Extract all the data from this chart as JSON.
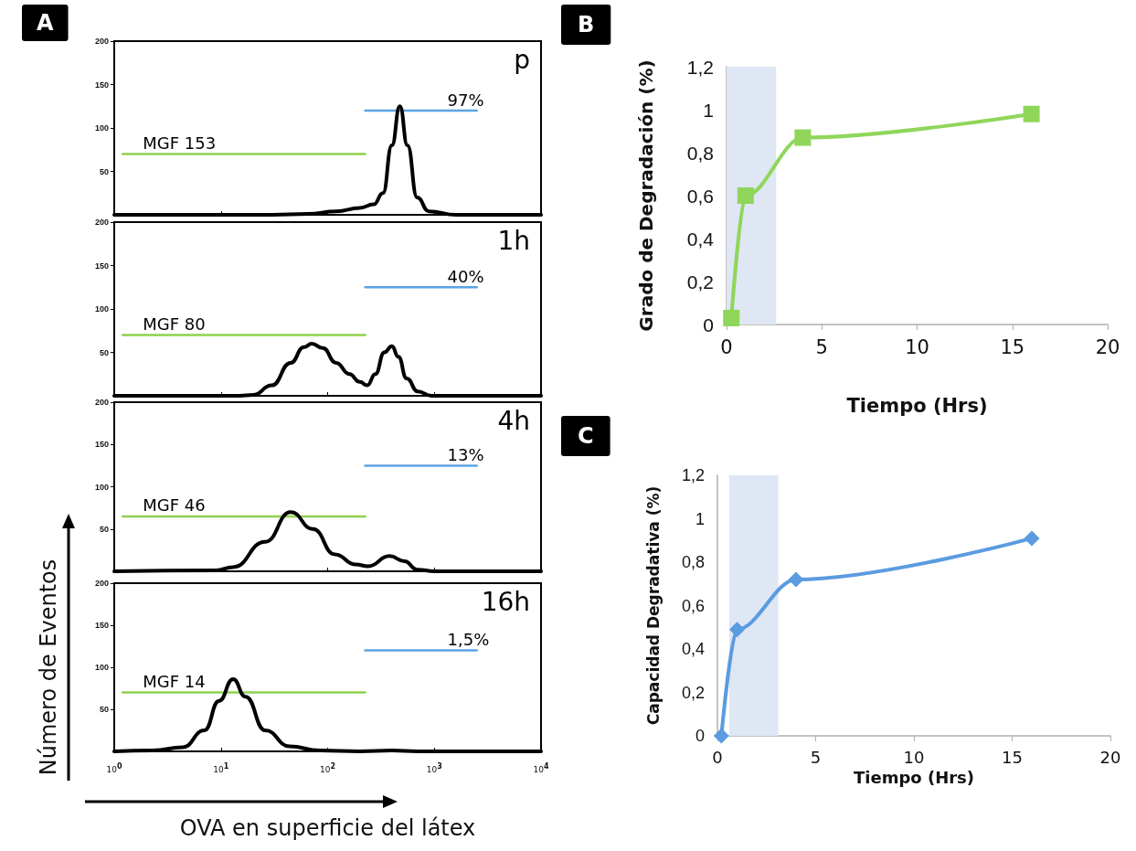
{
  "chart_data": [
    {
      "type": "line",
      "title": "A",
      "log": "x",
      "xlim": [
        1,
        10000
      ],
      "xticks": [
        {
          "value": 1,
          "label": null
        },
        {
          "value": 10,
          "label": null
        },
        {
          "value": 100,
          "label": null
        },
        {
          "value": 1000,
          "label": null
        },
        {
          "value": 10000,
          "label": null
        }
      ],
      "ylim": [
        0,
        200
      ],
      "yticks": [
        50,
        100,
        150,
        200
      ],
      "tick_labels": "y",
      "marker": "none",
      "annotations": [
        "p"
      ],
      "series": [
        {
          "color": "#000000",
          "x": [
            1,
            30,
            65,
            120,
            200,
            270,
            330,
            400,
            475,
            560,
            690,
            890,
            1600,
            10000
          ],
          "values": [
            0,
            0,
            1,
            4,
            8,
            12,
            25,
            80,
            125,
            80,
            20,
            4,
            0,
            0
          ]
        },
        {
          "name": "MGF 153",
          "color": "#8fd14f",
          "x": [
            1.2,
            225
          ],
          "values": [
            70,
            70
          ]
        },
        {
          "name": "97%",
          "color": "#5ba3e6",
          "x": [
            225,
            2500
          ],
          "values": [
            120,
            120
          ]
        }
      ]
    },
    {
      "type": "line",
      "log": "x",
      "xlim": [
        1,
        10000
      ],
      "xticks": [
        {
          "value": 1,
          "label": null
        },
        {
          "value": 10,
          "label": null
        },
        {
          "value": 100,
          "label": null
        },
        {
          "value": 1000,
          "label": null
        },
        {
          "value": 10000,
          "label": null
        }
      ],
      "ylim": [
        0,
        200
      ],
      "yticks": [
        50,
        100,
        150,
        200
      ],
      "tick_labels": "y",
      "marker": "none",
      "annotations": [
        "1h"
      ],
      "series": [
        {
          "color": "#000000",
          "x": [
            1,
            15,
            20,
            30,
            45,
            60,
            71,
            90,
            120,
            160,
            200,
            235,
            280,
            340,
            400,
            460,
            550,
            700,
            940,
            10000
          ],
          "values": [
            0,
            0,
            1,
            12,
            38,
            56,
            60,
            55,
            38,
            25,
            16,
            12,
            25,
            50,
            57,
            45,
            20,
            5,
            0,
            0
          ]
        },
        {
          "name": "MGF 80",
          "color": "#8fd14f",
          "x": [
            1.2,
            225
          ],
          "values": [
            70,
            70
          ]
        },
        {
          "name": "40%",
          "color": "#5ba3e6",
          "x": [
            225,
            2500
          ],
          "values": [
            125,
            125
          ]
        }
      ]
    },
    {
      "type": "line",
      "log": "x",
      "xlim": [
        1,
        10000
      ],
      "xticks": [
        {
          "value": 1,
          "label": null
        },
        {
          "value": 10,
          "label": null
        },
        {
          "value": 100,
          "label": null
        },
        {
          "value": 1000,
          "label": null
        },
        {
          "value": 10000,
          "label": null
        }
      ],
      "ylim": [
        0,
        200
      ],
      "yticks": [
        50,
        100,
        150,
        200
      ],
      "tick_labels": "y",
      "marker": "none",
      "annotations": [
        "4h"
      ],
      "series": [
        {
          "color": "#000000",
          "x": [
            1,
            9,
            13,
            26,
            45,
            73,
            117,
            183,
            240,
            380,
            525,
            690,
            1000,
            10000
          ],
          "values": [
            0,
            1,
            5,
            35,
            70,
            50,
            20,
            8,
            6,
            18,
            12,
            2,
            0,
            0
          ]
        },
        {
          "name": "MGF 46",
          "color": "#8fd14f",
          "x": [
            1.2,
            225
          ],
          "values": [
            65,
            65
          ]
        },
        {
          "name": "13%",
          "color": "#5ba3e6",
          "x": [
            225,
            2500
          ],
          "values": [
            125,
            125
          ]
        }
      ]
    },
    {
      "type": "line",
      "log": "x",
      "xlim": [
        1,
        10000
      ],
      "xticks": [
        {
          "value": 1,
          "label": "10$^{0}$"
        },
        {
          "value": 10,
          "label": "10$^{1}$"
        },
        {
          "value": 100,
          "label": "10$^{2}$"
        },
        {
          "value": 1000,
          "label": "10$^{3}$"
        },
        {
          "value": 10000,
          "label": "10$^{4}$"
        }
      ],
      "ylim": [
        0,
        200
      ],
      "yticks": [
        50,
        100,
        150,
        200
      ],
      "xlabel": "OVA en superficie del látex",
      "ylabel": "Número de Eventos",
      "marker": "none",
      "annotations": [
        "16h"
      ],
      "series": [
        {
          "color": "#000000",
          "x": [
            1,
            2.3,
            4.4,
            7,
            9.6,
            13,
            17,
            26,
            44,
            84,
            200,
            400,
            700,
            10000
          ],
          "values": [
            0,
            1,
            5,
            25,
            60,
            86,
            65,
            25,
            6,
            1,
            0,
            1,
            0,
            0
          ]
        },
        {
          "name": "MGF 14",
          "color": "#8fd14f",
          "x": [
            1.2,
            225
          ],
          "values": [
            70,
            70
          ]
        },
        {
          "name": "1,5%",
          "color": "#5ba3e6",
          "x": [
            225,
            2500
          ],
          "values": [
            120,
            120
          ]
        }
      ]
    },
    {
      "type": "line",
      "title": "B",
      "xlabel": "Tiempo (Hrs)",
      "ylabel": "Grado de Degradación (%)",
      "xlim": [
        0,
        20
      ],
      "xticks": [
        0,
        5,
        10,
        15,
        20
      ],
      "ylim": [
        0,
        1.2
      ],
      "yticks": [
        0,
        {
          "value": 0.2,
          "label": "0,2"
        },
        {
          "value": 0.4,
          "label": "0,4"
        },
        {
          "value": 0.6,
          "label": "0,6"
        },
        {
          "value": 0.8,
          "label": "0,8"
        },
        1,
        {
          "value": 1.2,
          "label": "1,2"
        }
      ],
      "marker": "square",
      "bands": [
        {
          "axis": "x",
          "from": 0,
          "to": 2.6,
          "color": "#dfe6f4"
        }
      ],
      "series": [
        {
          "color": "#8fd65a",
          "x": [
            0.25,
            1,
            4,
            16
          ],
          "values": [
            0.03,
            0.6,
            0.87,
            0.98
          ]
        }
      ]
    },
    {
      "type": "line",
      "title": "C",
      "xlabel": "Tiempo (Hrs)",
      "ylabel": "Capacidad Degradativa (%)",
      "xlim": [
        0,
        20
      ],
      "xticks": [
        0,
        5,
        10,
        15,
        20
      ],
      "ylim": [
        0,
        1.2
      ],
      "yticks": [
        0,
        {
          "value": 0.2,
          "label": "0,2"
        },
        {
          "value": 0.4,
          "label": "0,4"
        },
        {
          "value": 0.6,
          "label": "0,6"
        },
        {
          "value": 0.8,
          "label": "0,8"
        },
        1,
        {
          "value": 1.2,
          "label": "1,2"
        }
      ],
      "marker": "diamond",
      "bands": [
        {
          "axis": "x",
          "from": 0.6,
          "to": 3.1,
          "color": "#dfe6f4"
        }
      ],
      "series": [
        {
          "color": "#5b9be0",
          "x": [
            0.2,
            1,
            4,
            16
          ],
          "values": [
            0,
            0.49,
            0.72,
            0.91
          ]
        }
      ]
    }
  ]
}
